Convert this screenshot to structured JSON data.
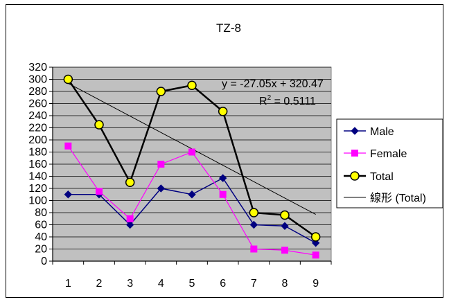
{
  "chart_data": {
    "type": "line",
    "title": "TZ-8",
    "xlabel": "",
    "ylabel": "",
    "categories": [
      "1",
      "2",
      "3",
      "4",
      "5",
      "6",
      "7",
      "8",
      "9"
    ],
    "ylim": [
      0,
      320
    ],
    "yticks": [
      "0",
      "20",
      "40",
      "60",
      "80",
      "100",
      "120",
      "140",
      "160",
      "180",
      "200",
      "220",
      "240",
      "260",
      "280",
      "300",
      "320"
    ],
    "grid": true,
    "legend_position": "right",
    "series": [
      {
        "name": "Male",
        "values": [
          110,
          110,
          60,
          120,
          110,
          137,
          60,
          58,
          30
        ],
        "color": "#000080",
        "marker": "diamond"
      },
      {
        "name": "Female",
        "values": [
          190,
          115,
          70,
          160,
          180,
          110,
          20,
          18,
          10
        ],
        "color": "#ff00ff",
        "marker": "square"
      },
      {
        "name": "Total",
        "values": [
          300,
          225,
          130,
          280,
          290,
          247,
          80,
          76,
          40
        ],
        "color": "#000000",
        "marker": "circle",
        "marker_fill": "#ffff00"
      }
    ],
    "trendline": {
      "name": "線形 (Total)",
      "target_series": "Total",
      "slope": -27.05,
      "intercept": 320.47,
      "equation_label": "y = -27.05x + 320.47",
      "r2_label": "R² = 0.5111",
      "r2_prefix": "R",
      "r2_sup": "2",
      "r2_suffix": " = 0.5111",
      "color": "#000000"
    },
    "plot_background": "#c0c0c0"
  }
}
